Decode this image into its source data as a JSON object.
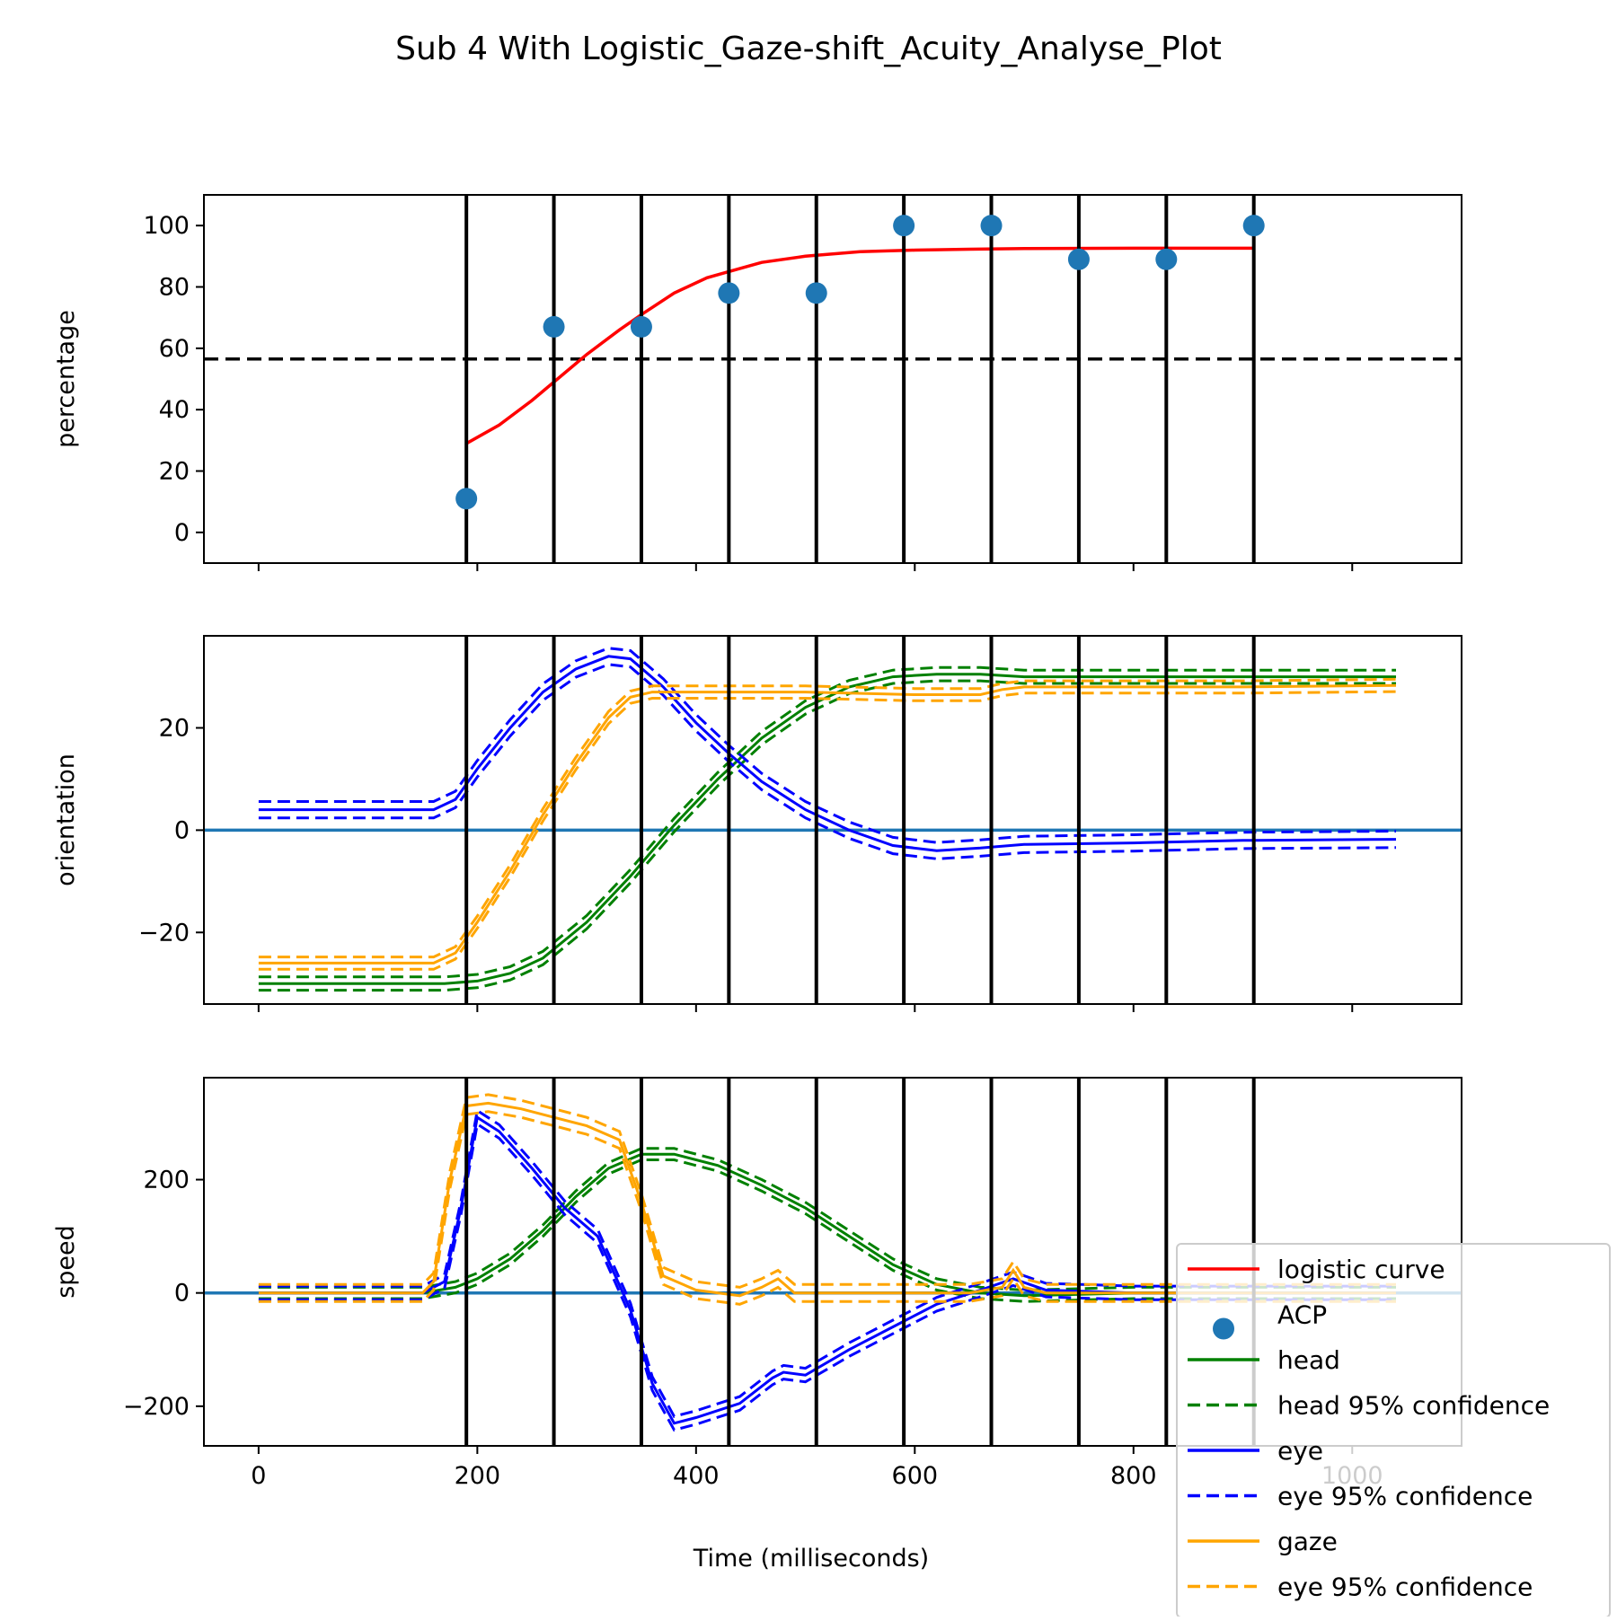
{
  "chart_data": {
    "type": "line",
    "title": "Sub 4 With Logistic_Gaze-shift_Acuity_Analyse_Plot",
    "xlabel": "Time (milliseconds)",
    "xlim": [
      -50,
      1100
    ],
    "x_ticks": [
      0,
      200,
      400,
      600,
      800,
      1000
    ],
    "x_tick_labels": [
      "0",
      "200",
      "400",
      "600",
      "800",
      "1000"
    ],
    "vlines_x": [
      190,
      270,
      350,
      430,
      510,
      590,
      670,
      750,
      830,
      910
    ],
    "legend_position": "bottom-right (overflowing right edge)",
    "legend": [
      {
        "label": "logistic curve",
        "color": "#ff0000",
        "style": "line"
      },
      {
        "label": "ACP",
        "color": "#1f77b4",
        "style": "marker"
      },
      {
        "label": "head",
        "color": "#008000",
        "style": "line"
      },
      {
        "label": "head 95% confidence",
        "color": "#008000",
        "style": "dashed"
      },
      {
        "label": "eye",
        "color": "#0000ff",
        "style": "line"
      },
      {
        "label": "eye 95% confidence",
        "color": "#0000ff",
        "style": "dashed"
      },
      {
        "label": "gaze",
        "color": "#ffa500",
        "style": "line"
      },
      {
        "label": "eye 95% confidence",
        "color": "#ffa500",
        "style": "dashed"
      }
    ],
    "panels": [
      {
        "ylabel": "percentage",
        "ylim": [
          -10,
          110
        ],
        "y_ticks": [
          0,
          20,
          40,
          60,
          80,
          100
        ],
        "y_tick_labels": [
          "0",
          "20",
          "40",
          "60",
          "80",
          "100"
        ],
        "hline": {
          "y": 56.5,
          "color": "#000000",
          "style": "dashed"
        },
        "scatter": {
          "name": "ACP",
          "color": "#1f77b4",
          "x": [
            190,
            270,
            350,
            430,
            510,
            590,
            670,
            750,
            830,
            910
          ],
          "y": [
            11,
            67,
            67,
            78,
            78,
            100,
            100,
            89,
            89,
            100
          ]
        },
        "curve": {
          "name": "logistic curve",
          "color": "#ff0000",
          "x": [
            190,
            220,
            250,
            270,
            300,
            330,
            350,
            380,
            410,
            430,
            460,
            500,
            550,
            600,
            650,
            700,
            800,
            910
          ],
          "y": [
            29,
            35,
            43,
            49,
            58,
            66,
            71,
            78,
            83,
            85,
            88,
            90,
            91.5,
            92,
            92.3,
            92.5,
            92.6,
            92.6
          ]
        }
      },
      {
        "ylabel": "orientation",
        "ylim": [
          -34,
          38
        ],
        "y_ticks": [
          -20,
          0,
          20
        ],
        "y_tick_labels": [
          "−20",
          "0",
          "20"
        ],
        "hline": {
          "y": 0,
          "color": "#1f77b4",
          "style": "solid"
        },
        "series": [
          {
            "name": "head",
            "color": "#008000",
            "x": [
              0,
              100,
              170,
              200,
              230,
              260,
              300,
              340,
              380,
              420,
              460,
              500,
              540,
              580,
              620,
              660,
              700,
              800,
              900,
              1040
            ],
            "y": [
              -30,
              -30,
              -30,
              -29.5,
              -28,
              -25,
              -18,
              -9,
              1,
              10,
              18,
              24,
              28,
              30,
              30.5,
              30.5,
              30,
              30,
              30,
              30
            ],
            "ci_offset": 1.3
          },
          {
            "name": "eye",
            "color": "#0000ff",
            "x": [
              0,
              100,
              160,
              180,
              200,
              230,
              260,
              290,
              320,
              340,
              370,
              400,
              430,
              460,
              500,
              540,
              580,
              620,
              660,
              700,
              800,
              900,
              1040
            ],
            "y": [
              4,
              4,
              4,
              6,
              12,
              20,
              27,
              31.5,
              34,
              33.5,
              28,
              21,
              15,
              9.5,
              4,
              0,
              -3,
              -4,
              -3.5,
              -2.8,
              -2.5,
              -2,
              -1.8
            ],
            "ci_offset": 1.6
          },
          {
            "name": "gaze",
            "color": "#ffa500",
            "x": [
              0,
              100,
              160,
              180,
              200,
              230,
              260,
              290,
              320,
              340,
              360,
              380,
              420,
              500,
              600,
              660,
              680,
              700,
              800,
              900,
              1040
            ],
            "y": [
              -26,
              -26,
              -26,
              -24,
              -18,
              -8,
              3,
              13,
              22,
              26,
              27,
              27,
              27,
              27,
              26.5,
              26.5,
              27.5,
              28,
              28,
              28,
              28.3
            ],
            "ci_offset": 1.2
          }
        ]
      },
      {
        "ylabel": "speed",
        "ylim": [
          -270,
          380
        ],
        "y_ticks": [
          -200,
          0,
          200
        ],
        "y_tick_labels": [
          "−200",
          "0",
          "200"
        ],
        "hline": {
          "y": 0,
          "color": "#1f77b4",
          "style": "solid"
        },
        "series": [
          {
            "name": "head",
            "color": "#008000",
            "x": [
              0,
              100,
              150,
              180,
              200,
              230,
              260,
              290,
              320,
              350,
              380,
              420,
              460,
              500,
              540,
              580,
              620,
              660,
              700,
              800,
              900,
              1040
            ],
            "y": [
              0,
              0,
              0,
              10,
              25,
              60,
              110,
              170,
              220,
              245,
              245,
              225,
              190,
              150,
              100,
              50,
              15,
              0,
              -5,
              0,
              0,
              0
            ],
            "ci_offset": 10
          },
          {
            "name": "eye",
            "color": "#0000ff",
            "x": [
              0,
              100,
              150,
              170,
              185,
              200,
              220,
              250,
              280,
              310,
              340,
              360,
              380,
              400,
              440,
              470,
              480,
              500,
              540,
              580,
              620,
              660,
              690,
              720,
              800,
              900,
              1040
            ],
            "y": [
              0,
              0,
              0,
              20,
              150,
              310,
              285,
              220,
              150,
              100,
              -30,
              -160,
              -230,
              -220,
              -195,
              -150,
              -140,
              -145,
              -100,
              -60,
              -20,
              5,
              25,
              5,
              0,
              0,
              0
            ],
            "ci_offset": 12
          },
          {
            "name": "gaze",
            "color": "#ffa500",
            "x": [
              0,
              100,
              150,
              160,
              175,
              190,
              210,
              240,
              270,
              300,
              330,
              350,
              370,
              400,
              440,
              460,
              475,
              490,
              520,
              560,
              600,
              650,
              680,
              690,
              700,
              720,
              800,
              900,
              1040
            ],
            "y": [
              0,
              0,
              0,
              20,
              200,
              330,
              335,
              325,
              310,
              295,
              270,
              160,
              30,
              5,
              -5,
              10,
              25,
              0,
              0,
              0,
              0,
              0,
              10,
              40,
              10,
              0,
              0,
              0,
              0
            ],
            "ci_offset": 15
          }
        ]
      }
    ]
  }
}
